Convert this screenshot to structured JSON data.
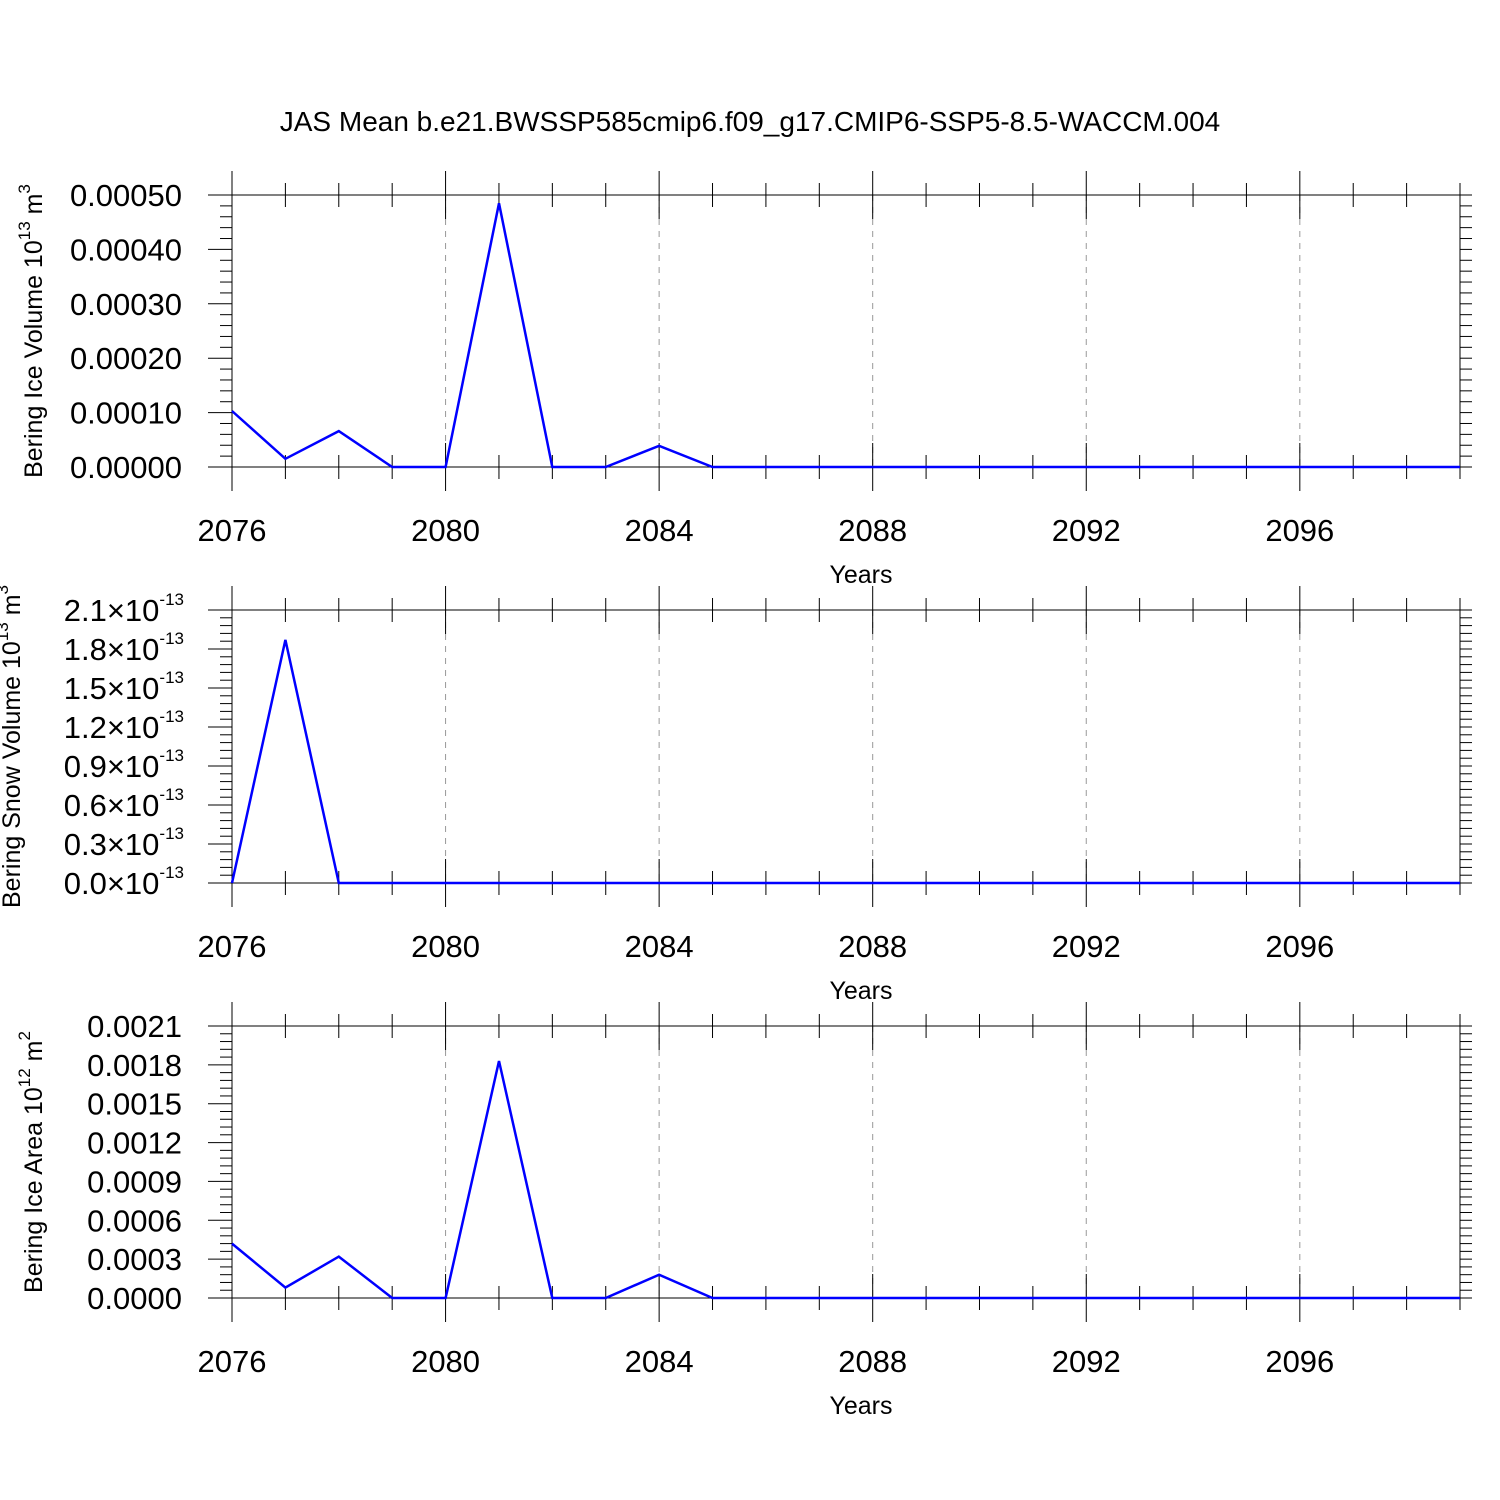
{
  "title": "JAS Mean b.e21.BWSSP585cmip6.f09_g17.CMIP6-SSP5-8.5-WACCM.004",
  "chart_data": [
    {
      "type": "line",
      "title": "",
      "xlabel": "Years",
      "ylabel": {
        "base": "Bering Ice Volume 10",
        "exp": "13",
        "unit": " m",
        "unit_exp": "3"
      },
      "xlim": [
        2076,
        2099
      ],
      "ylim": [
        0,
        0.0005
      ],
      "x_ticks": [
        {
          "value": 2076,
          "label": "2076"
        },
        {
          "value": 2080,
          "label": "2080"
        },
        {
          "value": 2084,
          "label": "2084"
        },
        {
          "value": 2088,
          "label": "2088"
        },
        {
          "value": 2092,
          "label": "2092"
        },
        {
          "value": 2096,
          "label": "2096"
        }
      ],
      "y_ticks": [
        {
          "value": 0,
          "label": "0.00000"
        },
        {
          "value": 0.0001,
          "label": "0.00010"
        },
        {
          "value": 0.0002,
          "label": "0.00020"
        },
        {
          "value": 0.0003,
          "label": "0.00030"
        },
        {
          "value": 0.0004,
          "label": "0.00040"
        },
        {
          "value": 0.0005,
          "label": "0.00050"
        }
      ],
      "grid": "dashed vertical at major x ticks",
      "series": [
        {
          "color": "#0000ff",
          "x": [
            2076,
            2077,
            2078,
            2079,
            2080,
            2081,
            2082,
            2083,
            2084,
            2085,
            2086,
            2087,
            2088,
            2089,
            2090,
            2091,
            2092,
            2093,
            2094,
            2095,
            2096,
            2097,
            2098,
            2099
          ],
          "y": [
            0.000103,
            1.5e-05,
            6.6e-05,
            0,
            0,
            0.000485,
            0,
            0,
            3.9e-05,
            0,
            0,
            0,
            0,
            0,
            0,
            0,
            0,
            0,
            0,
            0,
            0,
            0,
            0,
            0
          ]
        }
      ]
    },
    {
      "type": "line",
      "title": "",
      "xlabel": "Years",
      "ylabel": {
        "base": "Bering Snow Volume 10",
        "exp": "13",
        "unit": " m",
        "unit_exp": "3"
      },
      "xlim": [
        2076,
        2099
      ],
      "ylim": [
        0,
        2.1e-13
      ],
      "x_ticks": [
        {
          "value": 2076,
          "label": "2076"
        },
        {
          "value": 2080,
          "label": "2080"
        },
        {
          "value": 2084,
          "label": "2084"
        },
        {
          "value": 2088,
          "label": "2088"
        },
        {
          "value": 2092,
          "label": "2092"
        },
        {
          "value": 2096,
          "label": "2096"
        }
      ],
      "y_ticks": [
        {
          "value": 0,
          "label": "0.0×10",
          "exp": "-13"
        },
        {
          "value": 3e-14,
          "label": "0.3×10",
          "exp": "-13"
        },
        {
          "value": 6e-14,
          "label": "0.6×10",
          "exp": "-13"
        },
        {
          "value": 9e-14,
          "label": "0.9×10",
          "exp": "-13"
        },
        {
          "value": 1.2e-13,
          "label": "1.2×10",
          "exp": "-13"
        },
        {
          "value": 1.5e-13,
          "label": "1.5×10",
          "exp": "-13"
        },
        {
          "value": 1.8e-13,
          "label": "1.8×10",
          "exp": "-13"
        },
        {
          "value": 2.1e-13,
          "label": "2.1×10",
          "exp": "-13"
        }
      ],
      "grid": "dashed vertical at major x ticks",
      "series": [
        {
          "color": "#0000ff",
          "x": [
            2076,
            2077,
            2078,
            2079,
            2080,
            2081,
            2082,
            2083,
            2084,
            2085,
            2086,
            2087,
            2088,
            2089,
            2090,
            2091,
            2092,
            2093,
            2094,
            2095,
            2096,
            2097,
            2098,
            2099
          ],
          "y": [
            0,
            1.87e-13,
            0,
            0,
            0,
            0,
            0,
            0,
            0,
            0,
            0,
            0,
            0,
            0,
            0,
            0,
            0,
            0,
            0,
            0,
            0,
            0,
            0,
            0
          ]
        }
      ]
    },
    {
      "type": "line",
      "title": "",
      "xlabel": "Years",
      "ylabel": {
        "base": "Bering Ice Area 10",
        "exp": "12",
        "unit": " m",
        "unit_exp": "2"
      },
      "xlim": [
        2076,
        2099
      ],
      "ylim": [
        0,
        0.0021
      ],
      "x_ticks": [
        {
          "value": 2076,
          "label": "2076"
        },
        {
          "value": 2080,
          "label": "2080"
        },
        {
          "value": 2084,
          "label": "2084"
        },
        {
          "value": 2088,
          "label": "2088"
        },
        {
          "value": 2092,
          "label": "2092"
        },
        {
          "value": 2096,
          "label": "2096"
        }
      ],
      "y_ticks": [
        {
          "value": 0,
          "label": "0.0000"
        },
        {
          "value": 0.0003,
          "label": "0.0003"
        },
        {
          "value": 0.0006,
          "label": "0.0006"
        },
        {
          "value": 0.0009,
          "label": "0.0009"
        },
        {
          "value": 0.0012,
          "label": "0.0012"
        },
        {
          "value": 0.0015,
          "label": "0.0015"
        },
        {
          "value": 0.0018,
          "label": "0.0018"
        },
        {
          "value": 0.0021,
          "label": "0.0021"
        }
      ],
      "grid": "dashed vertical at major x ticks",
      "series": [
        {
          "color": "#0000ff",
          "x": [
            2076,
            2077,
            2078,
            2079,
            2080,
            2081,
            2082,
            2083,
            2084,
            2085,
            2086,
            2087,
            2088,
            2089,
            2090,
            2091,
            2092,
            2093,
            2094,
            2095,
            2096,
            2097,
            2098,
            2099
          ],
          "y": [
            0.00042,
            8e-05,
            0.00032,
            0,
            0,
            0.00183,
            0,
            0,
            0.00018,
            0,
            0,
            0,
            0,
            0,
            0,
            0,
            0,
            0,
            0,
            0,
            0,
            0,
            0,
            0
          ]
        }
      ]
    }
  ]
}
